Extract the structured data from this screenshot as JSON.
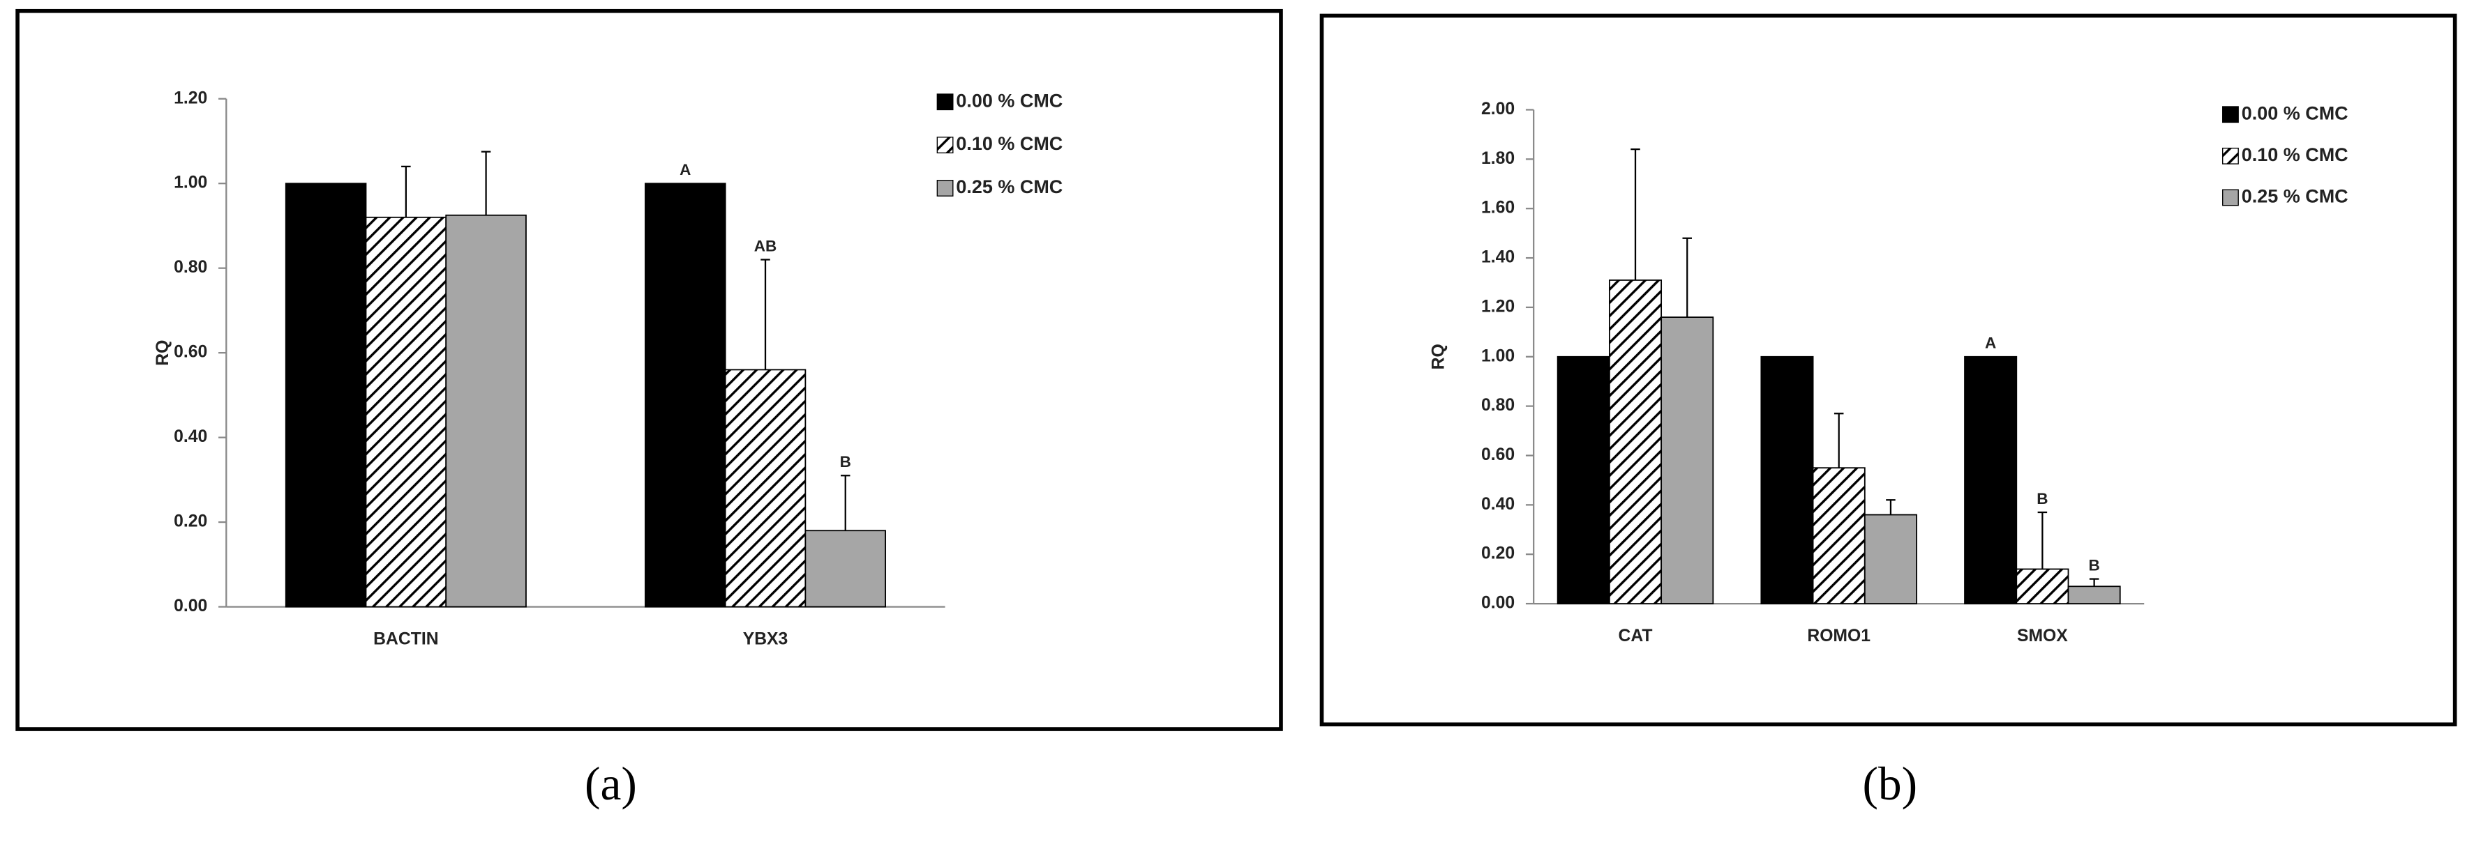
{
  "chart_data": [
    {
      "type": "bar",
      "panel_label": "(a)",
      "y_label": "RQ",
      "categories": [
        "BACTIN",
        "YBX3"
      ],
      "series": [
        {
          "name": "0.00 % CMC",
          "color": "#000000",
          "values": [
            1.0,
            1.0
          ],
          "errors": [
            0,
            0
          ],
          "annotations": [
            null,
            "A"
          ]
        },
        {
          "name": "0.10 % CMC",
          "color": "#000000",
          "pattern": "diagonal",
          "values": [
            0.92,
            0.56
          ],
          "errors": [
            0.12,
            0.26
          ],
          "annotations": [
            null,
            "AB"
          ]
        },
        {
          "name": "0.25 % CMC",
          "color": "#a6a6a6",
          "values": [
            0.925,
            0.18
          ],
          "errors": [
            0.15,
            0.13
          ],
          "annotations": [
            null,
            "B"
          ]
        }
      ],
      "ylim": [
        0,
        1.2
      ],
      "yticks": [
        {
          "value": 0,
          "label": "0.00"
        },
        {
          "value": 0.2,
          "label": "0.20"
        },
        {
          "value": 0.4,
          "label": "0.40"
        },
        {
          "value": 0.6,
          "label": "0.60"
        },
        {
          "value": 0.8,
          "label": "0.80"
        },
        {
          "value": 1.0,
          "label": "1.00"
        },
        {
          "value": 1.2,
          "label": "1.20"
        }
      ]
    },
    {
      "type": "bar",
      "panel_label": "(b)",
      "y_label": "RQ",
      "categories": [
        "CAT",
        "ROMO1",
        "SMOX"
      ],
      "series": [
        {
          "name": "0.00 % CMC",
          "color": "#000000",
          "values": [
            1.0,
            1.0,
            1.0
          ],
          "errors": [
            0,
            0,
            0
          ],
          "annotations": [
            null,
            null,
            "A"
          ]
        },
        {
          "name": "0.10 % CMC",
          "color": "#000000",
          "pattern": "diagonal",
          "values": [
            1.31,
            0.55,
            0.14
          ],
          "errors": [
            0.53,
            0.22,
            0.23
          ],
          "annotations": [
            null,
            null,
            "B"
          ]
        },
        {
          "name": "0.25 % CMC",
          "color": "#a6a6a6",
          "values": [
            1.16,
            0.36,
            0.07
          ],
          "errors": [
            0.32,
            0.06,
            0.03
          ],
          "annotations": [
            null,
            null,
            "B"
          ]
        }
      ],
      "ylim": [
        0,
        2.0
      ],
      "yticks": [
        {
          "value": 0,
          "label": "0.00"
        },
        {
          "value": 0.2,
          "label": "0.20"
        },
        {
          "value": 0.4,
          "label": "0.40"
        },
        {
          "value": 0.6,
          "label": "0.60"
        },
        {
          "value": 0.8,
          "label": "0.80"
        },
        {
          "value": 1.0,
          "label": "1.00"
        },
        {
          "value": 1.2,
          "label": "1.20"
        },
        {
          "value": 1.4,
          "label": "1.40"
        },
        {
          "value": 1.6,
          "label": "1.60"
        },
        {
          "value": 1.8,
          "label": "1.80"
        },
        {
          "value": 2.0,
          "label": "2.00"
        }
      ]
    }
  ]
}
